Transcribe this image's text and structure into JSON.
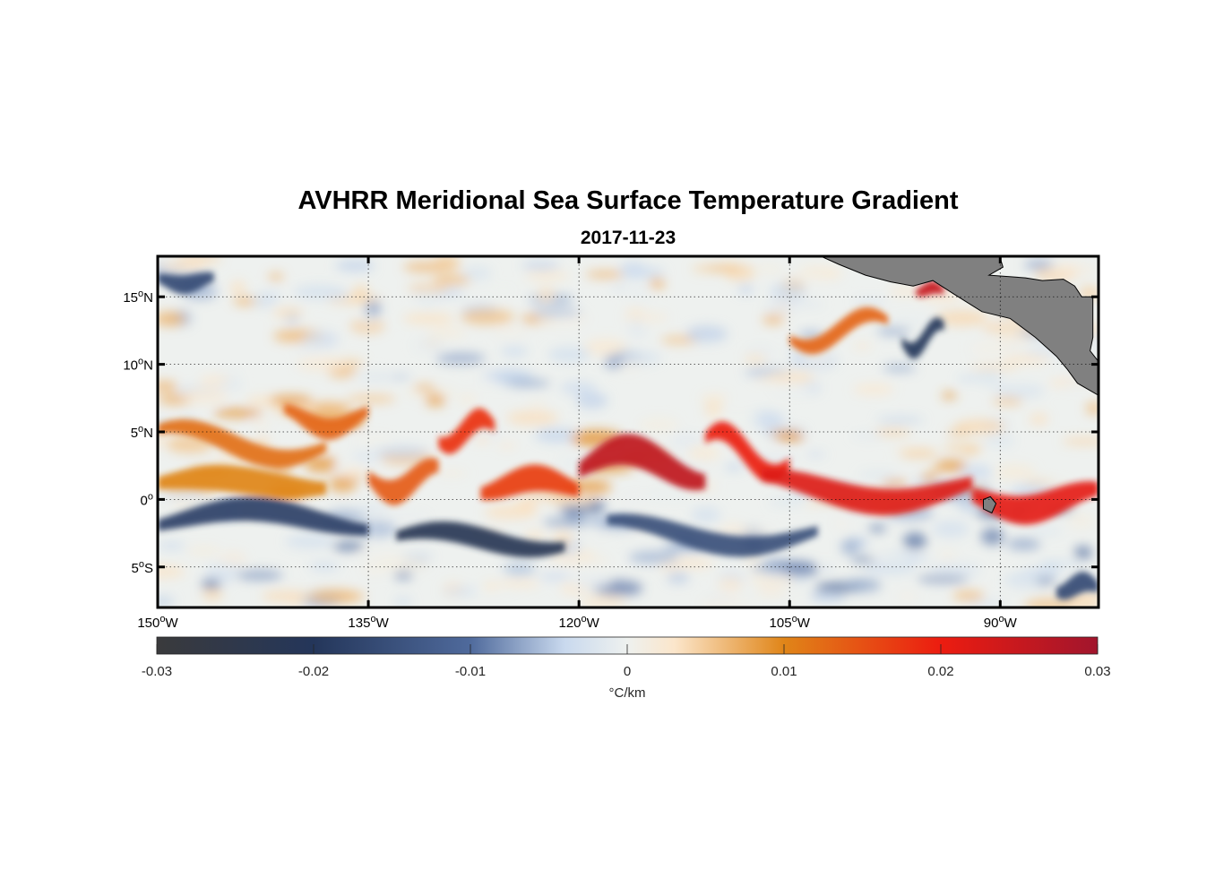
{
  "title": "AVHRR Meridional Sea Surface Temperature Gradient",
  "subtitle": "2017-11-23",
  "map": {
    "lon_range": [
      -150,
      -83
    ],
    "lat_range": [
      -8,
      18
    ],
    "lat_ticks": [
      {
        "value": 15,
        "text": "15",
        "sup": "o",
        "hem": "N"
      },
      {
        "value": 10,
        "text": "10",
        "sup": "o",
        "hem": "N"
      },
      {
        "value": 5,
        "text": "5",
        "sup": "o",
        "hem": "N"
      },
      {
        "value": 0,
        "text": "0",
        "sup": "o",
        "hem": ""
      },
      {
        "value": -5,
        "text": "5",
        "sup": "o",
        "hem": "S"
      }
    ],
    "lon_ticks": [
      {
        "value": -150,
        "text": "150",
        "sup": "o",
        "hem": "W"
      },
      {
        "value": -135,
        "text": "135",
        "sup": "o",
        "hem": "W"
      },
      {
        "value": -120,
        "text": "120",
        "sup": "o",
        "hem": "W"
      },
      {
        "value": -105,
        "text": "105",
        "sup": "o",
        "hem": "W"
      },
      {
        "value": -90,
        "text": "90",
        "sup": "o",
        "hem": "W"
      }
    ],
    "land_color": "#808080",
    "features": [
      {
        "type": "warm",
        "lat": 1.2,
        "lon0": -150,
        "lon1": -138,
        "v": 0.01,
        "w": 1.0,
        "amp": 0.4
      },
      {
        "type": "warm",
        "lat": 4.2,
        "lon0": -150,
        "lon1": -138,
        "v": 0.012,
        "w": 0.8,
        "amp": 1.2
      },
      {
        "type": "warm",
        "lat": 6.0,
        "lon0": -141,
        "lon1": -135,
        "v": 0.013,
        "w": 0.8,
        "amp": 0.8
      },
      {
        "type": "warm",
        "lat": 1.5,
        "lon0": -135,
        "lon1": -130,
        "v": 0.014,
        "w": 1.0,
        "amp": 1.0
      },
      {
        "type": "warm",
        "lat": 5.0,
        "lon0": -130,
        "lon1": -126,
        "v": 0.018,
        "w": 0.9,
        "amp": 1.0
      },
      {
        "type": "warm",
        "lat": 1.0,
        "lon0": -127,
        "lon1": -120,
        "v": 0.017,
        "w": 1.0,
        "amp": 0.6
      },
      {
        "type": "warm",
        "lat": 2.5,
        "lon0": -120,
        "lon1": -111,
        "v": 0.026,
        "w": 1.2,
        "amp": 1.2
      },
      {
        "type": "warm",
        "lat": 3.5,
        "lon0": -111,
        "lon1": -105,
        "v": 0.02,
        "w": 0.9,
        "amp": 1.6
      },
      {
        "type": "warm",
        "lat": 0.8,
        "lon0": -107,
        "lon1": -92,
        "v": 0.022,
        "w": 1.0,
        "amp": 1.0
      },
      {
        "type": "warm",
        "lat": 0.0,
        "lon0": -92,
        "lon1": -83,
        "v": 0.021,
        "w": 1.1,
        "amp": 0.8
      },
      {
        "type": "warm",
        "lat": 12.5,
        "lon0": -105,
        "lon1": -98,
        "v": 0.013,
        "w": 0.7,
        "amp": 1.2
      },
      {
        "type": "warm",
        "lat": 15.5,
        "lon0": -96,
        "lon1": -94,
        "v": 0.025,
        "w": 0.5,
        "amp": 0.2
      },
      {
        "type": "cold",
        "lat": -1.5,
        "lon0": -150,
        "lon1": -135,
        "v": -0.018,
        "w": 0.9,
        "amp": 0.8
      },
      {
        "type": "cold",
        "lat": -3.0,
        "lon0": -133,
        "lon1": -121,
        "v": -0.022,
        "w": 0.8,
        "amp": 0.7
      },
      {
        "type": "cold",
        "lat": -2.5,
        "lon0": -118,
        "lon1": -103,
        "v": -0.015,
        "w": 0.8,
        "amp": 1.0
      },
      {
        "type": "cold",
        "lat": 16.2,
        "lon0": -150,
        "lon1": -146,
        "v": -0.016,
        "w": 0.7,
        "amp": 0.3
      },
      {
        "type": "cold",
        "lat": 12.0,
        "lon0": -97,
        "lon1": -94,
        "v": -0.02,
        "w": 0.7,
        "amp": 1.0
      },
      {
        "type": "cold",
        "lat": -6.5,
        "lon0": -86,
        "lon1": -83,
        "v": -0.016,
        "w": 0.8,
        "amp": 0.4
      }
    ]
  },
  "colorbar": {
    "min": -0.03,
    "max": 0.03,
    "ticks": [
      {
        "value": -0.03,
        "text": "-0.03"
      },
      {
        "value": -0.02,
        "text": "-0.02"
      },
      {
        "value": -0.01,
        "text": "-0.01"
      },
      {
        "value": 0,
        "text": "0"
      },
      {
        "value": 0.01,
        "text": "0.01"
      },
      {
        "value": 0.02,
        "text": "0.02"
      },
      {
        "value": 0.03,
        "text": "0.03"
      }
    ],
    "label": "°C/km",
    "stops": [
      {
        "value": -0.03,
        "color": "#3a3a3c"
      },
      {
        "value": -0.02,
        "color": "#24365a"
      },
      {
        "value": -0.01,
        "color": "#4f6a9c"
      },
      {
        "value": -0.004,
        "color": "#c9d9ee"
      },
      {
        "value": 0,
        "color": "#eef1ef"
      },
      {
        "value": 0.003,
        "color": "#fbe6cb"
      },
      {
        "value": 0.01,
        "color": "#e08518"
      },
      {
        "value": 0.02,
        "color": "#ec1c10"
      },
      {
        "value": 0.03,
        "color": "#a1152d"
      }
    ]
  }
}
